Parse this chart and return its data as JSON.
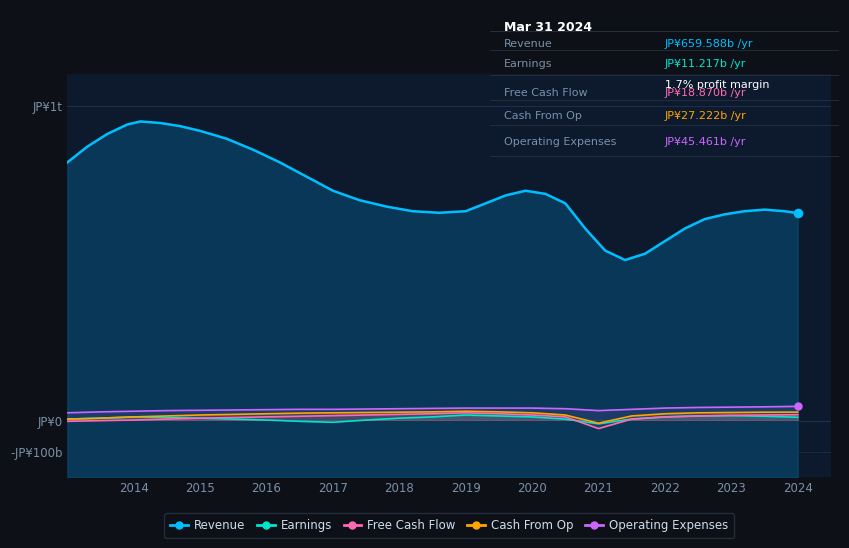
{
  "bg_color": "#0d1117",
  "plot_bg_color": "#0d1a2e",
  "line_colors": {
    "revenue": "#00bfff",
    "earnings": "#00e5cc",
    "fcf": "#ff69b4",
    "cashfromop": "#ffa500",
    "opex": "#cc66ff"
  },
  "legend_colors": [
    "#00bfff",
    "#00e5cc",
    "#ff69b4",
    "#ffa500",
    "#cc66ff"
  ],
  "legend_labels": [
    "Revenue",
    "Earnings",
    "Free Cash Flow",
    "Cash From Op",
    "Operating Expenses"
  ],
  "revenue_x": [
    2013.0,
    2013.3,
    2013.6,
    2013.9,
    2014.1,
    2014.4,
    2014.7,
    2015.0,
    2015.4,
    2015.8,
    2016.2,
    2016.6,
    2017.0,
    2017.4,
    2017.8,
    2018.2,
    2018.6,
    2019.0,
    2019.3,
    2019.6,
    2019.9,
    2020.2,
    2020.5,
    2020.8,
    2021.1,
    2021.4,
    2021.7,
    2022.0,
    2022.3,
    2022.6,
    2022.9,
    2023.2,
    2023.5,
    2023.8,
    2024.0
  ],
  "revenue_y": [
    820,
    870,
    910,
    940,
    950,
    945,
    935,
    920,
    895,
    860,
    820,
    775,
    730,
    700,
    680,
    665,
    660,
    665,
    690,
    715,
    730,
    720,
    690,
    610,
    540,
    510,
    530,
    570,
    610,
    640,
    655,
    665,
    670,
    665,
    659
  ],
  "earnings_x": [
    2013.0,
    2013.5,
    2014.0,
    2014.5,
    2015.0,
    2015.5,
    2016.0,
    2016.5,
    2017.0,
    2017.5,
    2018.0,
    2018.5,
    2019.0,
    2019.5,
    2020.0,
    2020.5,
    2021.0,
    2021.5,
    2022.0,
    2022.5,
    2023.0,
    2023.5,
    2024.0
  ],
  "earnings_y": [
    5,
    8,
    12,
    10,
    8,
    5,
    2,
    -2,
    -5,
    2,
    8,
    12,
    18,
    15,
    12,
    5,
    -10,
    5,
    12,
    15,
    16,
    14,
    11
  ],
  "fcf_x": [
    2013.0,
    2013.5,
    2014.0,
    2014.5,
    2015.0,
    2015.5,
    2016.0,
    2016.5,
    2017.0,
    2017.5,
    2018.0,
    2018.5,
    2019.0,
    2019.5,
    2020.0,
    2020.5,
    2021.0,
    2021.5,
    2022.0,
    2022.5,
    2023.0,
    2023.5,
    2024.0
  ],
  "fcf_y": [
    -2,
    0,
    2,
    5,
    8,
    10,
    12,
    14,
    16,
    18,
    20,
    22,
    25,
    22,
    18,
    12,
    -25,
    5,
    12,
    15,
    17,
    18,
    18.87
  ],
  "cashfromop_x": [
    2013.0,
    2013.5,
    2014.0,
    2014.5,
    2015.0,
    2015.5,
    2016.0,
    2016.5,
    2017.0,
    2017.5,
    2018.0,
    2018.5,
    2019.0,
    2019.5,
    2020.0,
    2020.5,
    2021.0,
    2021.5,
    2022.0,
    2022.5,
    2023.0,
    2023.5,
    2024.0
  ],
  "cashfromop_y": [
    5,
    8,
    12,
    15,
    18,
    20,
    22,
    24,
    25,
    26,
    27,
    28,
    30,
    28,
    25,
    18,
    -8,
    15,
    22,
    25,
    26,
    27,
    27.222
  ],
  "opex_x": [
    2013.0,
    2013.5,
    2014.0,
    2014.5,
    2015.0,
    2015.5,
    2016.0,
    2016.5,
    2017.0,
    2017.5,
    2018.0,
    2018.5,
    2019.0,
    2019.5,
    2020.0,
    2020.5,
    2021.0,
    2021.5,
    2022.0,
    2022.5,
    2023.0,
    2023.5,
    2024.0
  ],
  "opex_y": [
    25,
    28,
    30,
    32,
    33,
    34,
    35,
    36,
    36,
    37,
    38,
    39,
    40,
    40,
    40,
    38,
    32,
    36,
    40,
    42,
    43,
    44,
    45.461
  ],
  "ylim_top": 1100,
  "ylim_bottom": -180,
  "xlim_left": 2013.0,
  "xlim_right": 2024.5,
  "y_ticks": [
    1000,
    0,
    -100
  ],
  "y_tick_labels": [
    "JP¥1t",
    "JP¥0",
    "-JP¥100b"
  ],
  "x_ticks": [
    2014,
    2015,
    2016,
    2017,
    2018,
    2019,
    2020,
    2021,
    2022,
    2023,
    2024
  ],
  "grid_y": 1000,
  "tooltip_date": "Mar 31 2024",
  "tooltip_rows": [
    {
      "label": "Revenue",
      "value": "JP¥659.588b /yr",
      "color": "#00bfff",
      "extra": null
    },
    {
      "label": "Earnings",
      "value": "JP¥11.217b /yr",
      "color": "#00e5cc",
      "extra": "1.7% profit margin"
    },
    {
      "label": "Free Cash Flow",
      "value": "JP¥18.870b /yr",
      "color": "#ff69b4",
      "extra": null
    },
    {
      "label": "Cash From Op",
      "value": "JP¥27.222b /yr",
      "color": "#ffa500",
      "extra": null
    },
    {
      "label": "Operating Expenses",
      "value": "JP¥45.461b /yr",
      "color": "#cc66ff",
      "extra": null
    }
  ],
  "tooltip_bg": "#0a0e14",
  "tooltip_border": "#2a3545",
  "label_color": "#7a8fa8",
  "tick_color": "#7a8fa8"
}
